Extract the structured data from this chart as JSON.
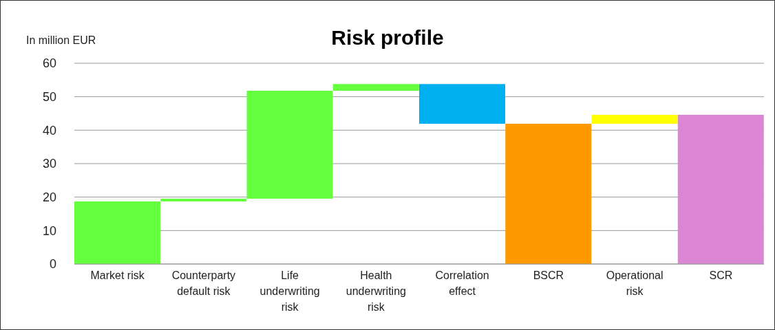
{
  "chart_data": {
    "type": "bar",
    "title": "Risk profile",
    "ylabel": "In million EUR",
    "categories": [
      "Market risk",
      "Counterparty default risk",
      "Life underwriting risk",
      "Health underwriting risk",
      "Correlation effect",
      "BSCR",
      "Operational risk",
      "SCR"
    ],
    "values": [
      18.7,
      0.8,
      32.3,
      2.0,
      11.9,
      41.9,
      2.7,
      44.6
    ],
    "base": [
      0,
      18.7,
      19.5,
      51.8,
      41.9,
      0,
      41.9,
      0
    ],
    "colors": [
      "#66ff3f",
      "#66ff3f",
      "#66ff3f",
      "#66ff3f",
      "#00b0f0",
      "#ff9900",
      "#ffff00",
      "#da86d4"
    ],
    "ylim": [
      0,
      60
    ],
    "yticks": [
      0,
      10,
      20,
      30,
      40,
      50,
      60
    ],
    "grid": "y",
    "legend": false
  }
}
